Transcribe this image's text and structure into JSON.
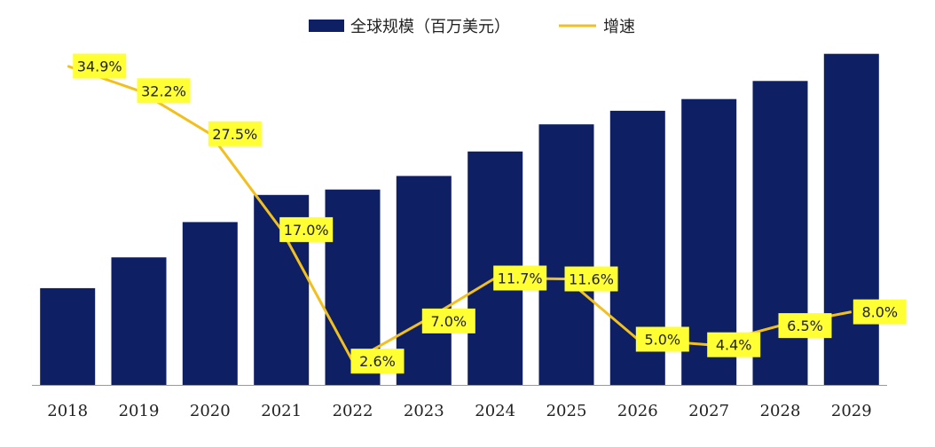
{
  "chart_data": {
    "type": "bar",
    "categories": [
      "2018",
      "2019",
      "2020",
      "2021",
      "2022",
      "2023",
      "2024",
      "2025",
      "2026",
      "2027",
      "2028",
      "2029"
    ],
    "series": [
      {
        "name": "全球规模（百万美元）",
        "chart_type": "bar",
        "axis": "left",
        "values": [
          107,
          141,
          180,
          210,
          216,
          231,
          258,
          288,
          303,
          316,
          336,
          366
        ]
      },
      {
        "name": "增速",
        "chart_type": "line",
        "axis": "right",
        "unit": "%",
        "values": [
          34.9,
          32.2,
          27.5,
          17.0,
          2.6,
          7.0,
          11.7,
          11.6,
          5.0,
          4.4,
          6.5,
          8.0
        ],
        "labels": [
          "34.9%",
          "32.2%",
          "27.5%",
          "17.0%",
          "2.6%",
          "7.0%",
          "11.7%",
          "11.6%",
          "5.0%",
          "4.4%",
          "6.5%",
          "8.0%"
        ]
      }
    ],
    "ylim": [
      0,
      400
    ],
    "y2lim": [
      0,
      40
    ],
    "legend_position": "top-center",
    "grid": false,
    "colors": {
      "bar": "#0e1f63",
      "line": "#f2c01e",
      "label_bg": "#ffff33",
      "axis": "#9a9a9a"
    }
  }
}
